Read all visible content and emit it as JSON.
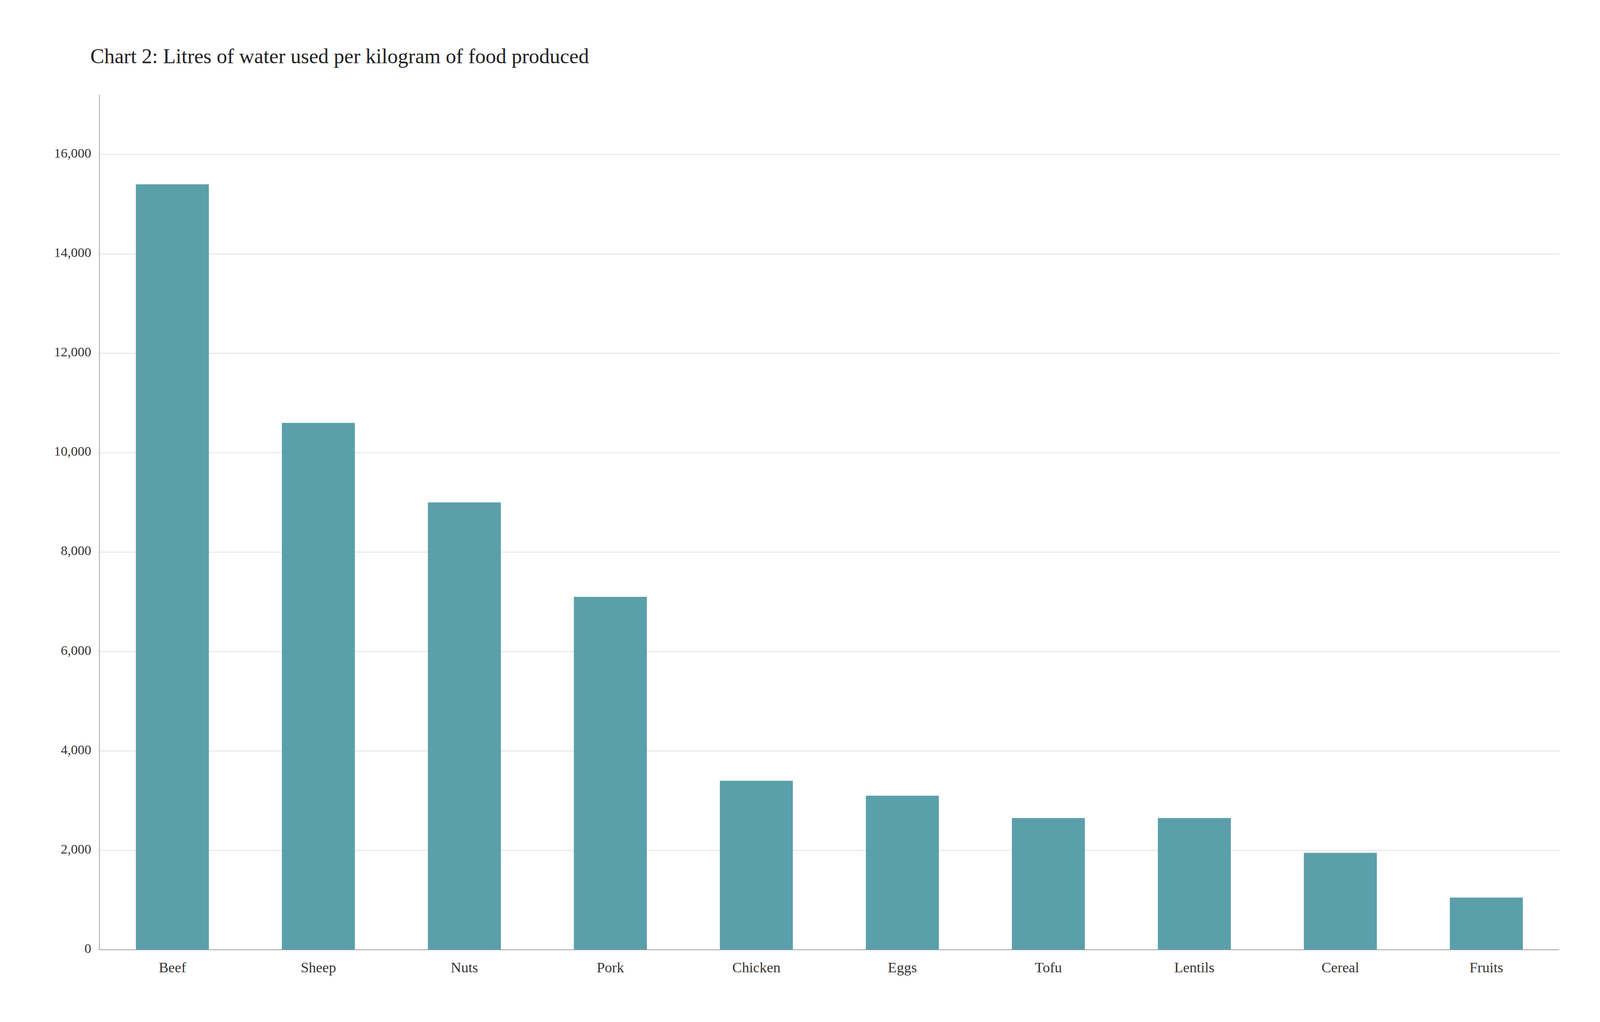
{
  "chart_data": {
    "type": "bar",
    "title": "Chart 2: Litres of water used per kilogram of food produced",
    "categories": [
      "Beef",
      "Sheep",
      "Nuts",
      "Pork",
      "Chicken",
      "Eggs",
      "Tofu",
      "Lentils",
      "Cereal",
      "Fruits"
    ],
    "values": [
      15400,
      10600,
      9000,
      7100,
      3400,
      3100,
      2650,
      2650,
      1950,
      1050
    ],
    "color": "#5b9faa",
    "ylim": [
      0,
      17200
    ],
    "yticks": [
      0,
      {
        "value": 2000,
        "label": "2,000"
      },
      {
        "value": 4000,
        "label": "4,000"
      },
      {
        "value": 6000,
        "label": "6,000"
      },
      {
        "value": 8000,
        "label": "8,000"
      },
      {
        "value": 10000,
        "label": "10,000"
      },
      {
        "value": 12000,
        "label": "12,000"
      },
      {
        "value": 14000,
        "label": "14,000"
      },
      {
        "value": 16000,
        "label": "16,000"
      }
    ],
    "grid": true
  }
}
